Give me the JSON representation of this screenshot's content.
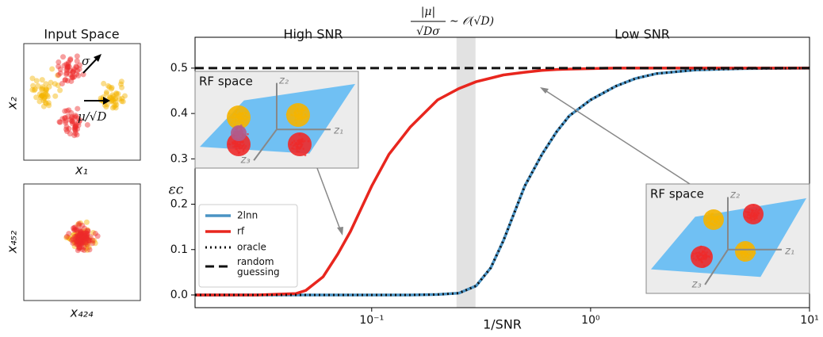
{
  "chart_data": {
    "type": "line",
    "x_label": "1/SNR",
    "y_label": "εc",
    "xscale": "log",
    "xlim": [
      0.0156,
      10
    ],
    "ylim": [
      -0.028,
      0.568
    ],
    "xticks": [
      {
        "value": 0.1,
        "label": "10⁻¹"
      },
      {
        "value": 1,
        "label": "10⁰"
      },
      {
        "value": 10,
        "label": "10¹"
      }
    ],
    "yticks": [
      {
        "value": 0,
        "label": "0.0"
      },
      {
        "value": 0.1,
        "label": "0.1"
      },
      {
        "value": 0.2,
        "label": "0.2"
      },
      {
        "value": 0.3,
        "label": "0.3"
      },
      {
        "value": 0.4,
        "label": "0.4"
      },
      {
        "value": 0.5,
        "label": "0.5"
      }
    ],
    "shaded_span": [
      0.244,
      0.298
    ],
    "legend": "lower left",
    "x": [
      0.0156,
      0.03,
      0.045,
      0.05,
      0.06,
      0.07,
      0.08,
      0.1,
      0.12,
      0.15,
      0.2,
      0.25,
      0.3,
      0.35,
      0.4,
      0.5,
      0.6,
      0.7,
      0.8,
      1.0,
      1.3,
      1.6,
      2,
      3,
      5,
      10
    ],
    "series": [
      {
        "name": "2lnn",
        "color": "#4a93c4",
        "style": "solid",
        "values": [
          0,
          0,
          0,
          0,
          0,
          0,
          0,
          0,
          0,
          0,
          0.001,
          0.004,
          0.02,
          0.06,
          0.12,
          0.24,
          0.31,
          0.36,
          0.395,
          0.43,
          0.46,
          0.477,
          0.488,
          0.496,
          0.499,
          0.5
        ]
      },
      {
        "name": "rf",
        "color": "#e8261e",
        "style": "solid",
        "values": [
          0,
          0,
          0.003,
          0.01,
          0.04,
          0.09,
          0.14,
          0.24,
          0.31,
          0.37,
          0.43,
          0.455,
          0.47,
          0.478,
          0.485,
          0.491,
          0.495,
          0.497,
          0.498,
          0.499,
          0.5,
          0.5,
          0.5,
          0.5,
          0.5,
          0.5
        ]
      },
      {
        "name": "oracle",
        "color": "#111111",
        "style": "dotted",
        "values": [
          0,
          0,
          0,
          0,
          0,
          0,
          0,
          0,
          0,
          0,
          0.001,
          0.004,
          0.02,
          0.06,
          0.12,
          0.24,
          0.31,
          0.36,
          0.395,
          0.43,
          0.46,
          0.477,
          0.488,
          0.496,
          0.499,
          0.5
        ]
      },
      {
        "name": "random guessing",
        "color": "#111111",
        "style": "dashed",
        "values": [
          0.5,
          0.5,
          0.5,
          0.5,
          0.5,
          0.5,
          0.5,
          0.5,
          0.5,
          0.5,
          0.5,
          0.5,
          0.5,
          0.5,
          0.5,
          0.5,
          0.5,
          0.5,
          0.5,
          0.5,
          0.5,
          0.5,
          0.5,
          0.5,
          0.5,
          0.5
        ]
      }
    ],
    "annotations": {
      "high": "High SNR",
      "low": "Low SNR",
      "numerator": "|μ|",
      "denominator": "√Dσ",
      "scaling": "∼ 𝒪(√D)"
    },
    "insets": [
      {
        "title": "RF space",
        "z1": "z₁",
        "z2": "z₂",
        "z3": "z₃"
      },
      {
        "title": "RF space",
        "z1": "z₁",
        "z2": "z₂",
        "z3": "z₃"
      }
    ]
  },
  "input_panels": {
    "title": "Input Space",
    "top": {
      "x_label": "x₁",
      "y_label": "x₂",
      "sigma": "σ",
      "mu": "μ/√D"
    },
    "bottom": {
      "x_label": "x₄₂₄",
      "y_label": "x₄₅₂"
    }
  }
}
